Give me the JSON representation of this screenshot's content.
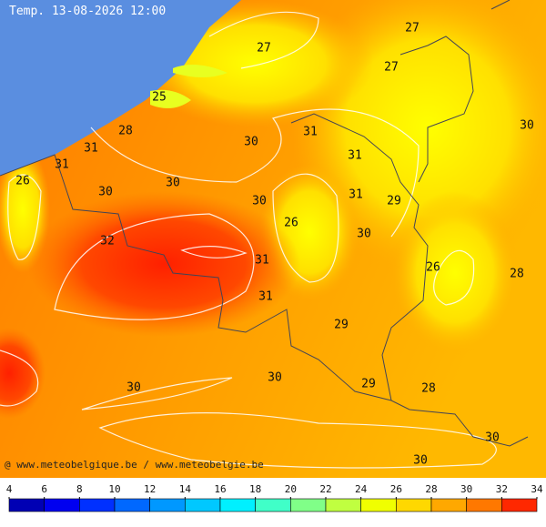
{
  "title": "Temp. 13-08-2026 12:00",
  "credit": "@ www.meteobelgique.be / www.meteobelgie.be",
  "labels": [
    27,
    27,
    27,
    30,
    25,
    28,
    31,
    30,
    31,
    31,
    31,
    26,
    30,
    30,
    30,
    31,
    29,
    26,
    30,
    32,
    31,
    26,
    28,
    31,
    29,
    30,
    30,
    29,
    28,
    30,
    30
  ],
  "legend": {
    "ticks": [
      4,
      6,
      8,
      10,
      12,
      14,
      16,
      18,
      20,
      22,
      24,
      26,
      28,
      30,
      32,
      34
    ],
    "colors": [
      "#0000b4",
      "#0000f0",
      "#0030ff",
      "#0068ff",
      "#0098ff",
      "#00c8ff",
      "#00f0ff",
      "#40ffc8",
      "#80ff88",
      "#c0ff40",
      "#f0ff00",
      "#ffd800",
      "#ffa800",
      "#ff7800",
      "#ff2800"
    ]
  }
}
